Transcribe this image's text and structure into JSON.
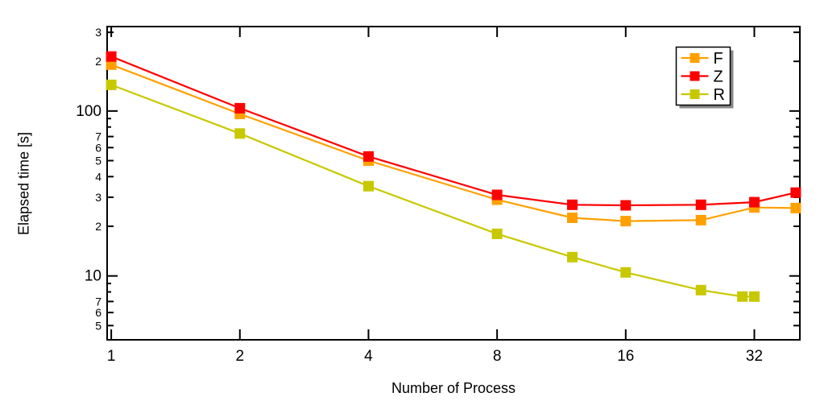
{
  "chart_data": {
    "type": "line",
    "title": "",
    "xlabel": "Number of Process",
    "ylabel": "Elapsed time [s]",
    "x_scale": "log2",
    "y_scale": "log10",
    "xlim": [
      0.978,
      40.9
    ],
    "ylim": [
      4.1,
      325
    ],
    "grid": false,
    "frame_color": "#000000",
    "legend_position": "top-right",
    "x_ticks": [
      {
        "v": 1,
        "label": "1"
      },
      {
        "v": 2,
        "label": "2"
      },
      {
        "v": 4,
        "label": "4"
      },
      {
        "v": 8,
        "label": "8"
      },
      {
        "v": 16,
        "label": "16"
      },
      {
        "v": 32,
        "label": "32"
      }
    ],
    "y_ticks": [
      {
        "v": 300,
        "label": "3",
        "tier": "sub"
      },
      {
        "v": 200,
        "label": "2",
        "tier": "sub"
      },
      {
        "v": 100,
        "label": "100",
        "tier": "major"
      },
      {
        "v": 90,
        "label": "",
        "tier": "minor"
      },
      {
        "v": 80,
        "label": "",
        "tier": "minor"
      },
      {
        "v": 70,
        "label": "7",
        "tier": "sub"
      },
      {
        "v": 60,
        "label": "6",
        "tier": "sub"
      },
      {
        "v": 50,
        "label": "5",
        "tier": "sub"
      },
      {
        "v": 40,
        "label": "4",
        "tier": "sub"
      },
      {
        "v": 30,
        "label": "3",
        "tier": "sub"
      },
      {
        "v": 20,
        "label": "2",
        "tier": "sub"
      },
      {
        "v": 10,
        "label": "10",
        "tier": "major"
      },
      {
        "v": 9,
        "label": "",
        "tier": "minor"
      },
      {
        "v": 8,
        "label": "",
        "tier": "minor"
      },
      {
        "v": 7,
        "label": "7",
        "tier": "sub"
      },
      {
        "v": 6,
        "label": "6",
        "tier": "sub"
      },
      {
        "v": 5,
        "label": "5",
        "tier": "sub"
      }
    ],
    "series": [
      {
        "name": "F",
        "color": "#FFA000",
        "marker": "square",
        "points": [
          [
            1,
            191
          ],
          [
            2,
            96
          ],
          [
            4,
            50
          ],
          [
            8,
            29
          ],
          [
            12,
            22.5
          ],
          [
            16,
            21.5
          ],
          [
            24,
            21.8
          ],
          [
            32,
            26
          ],
          [
            40,
            25.8
          ]
        ]
      },
      {
        "name": "Z",
        "color": "#FF0000",
        "marker": "square",
        "points": [
          [
            1,
            214
          ],
          [
            2,
            104
          ],
          [
            4,
            53
          ],
          [
            8,
            31
          ],
          [
            12,
            27
          ],
          [
            16,
            26.8
          ],
          [
            24,
            27
          ],
          [
            32,
            28
          ],
          [
            40,
            32
          ]
        ]
      },
      {
        "name": "R",
        "color": "#C8C800",
        "marker": "square",
        "points": [
          [
            1,
            144
          ],
          [
            2,
            73
          ],
          [
            4,
            35
          ],
          [
            8,
            18
          ],
          [
            12,
            13
          ],
          [
            16,
            10.5
          ],
          [
            24,
            8.2
          ],
          [
            30,
            7.5
          ],
          [
            32,
            7.5
          ]
        ]
      }
    ],
    "legend": {
      "entries": [
        "F",
        "Z",
        "R"
      ]
    }
  }
}
